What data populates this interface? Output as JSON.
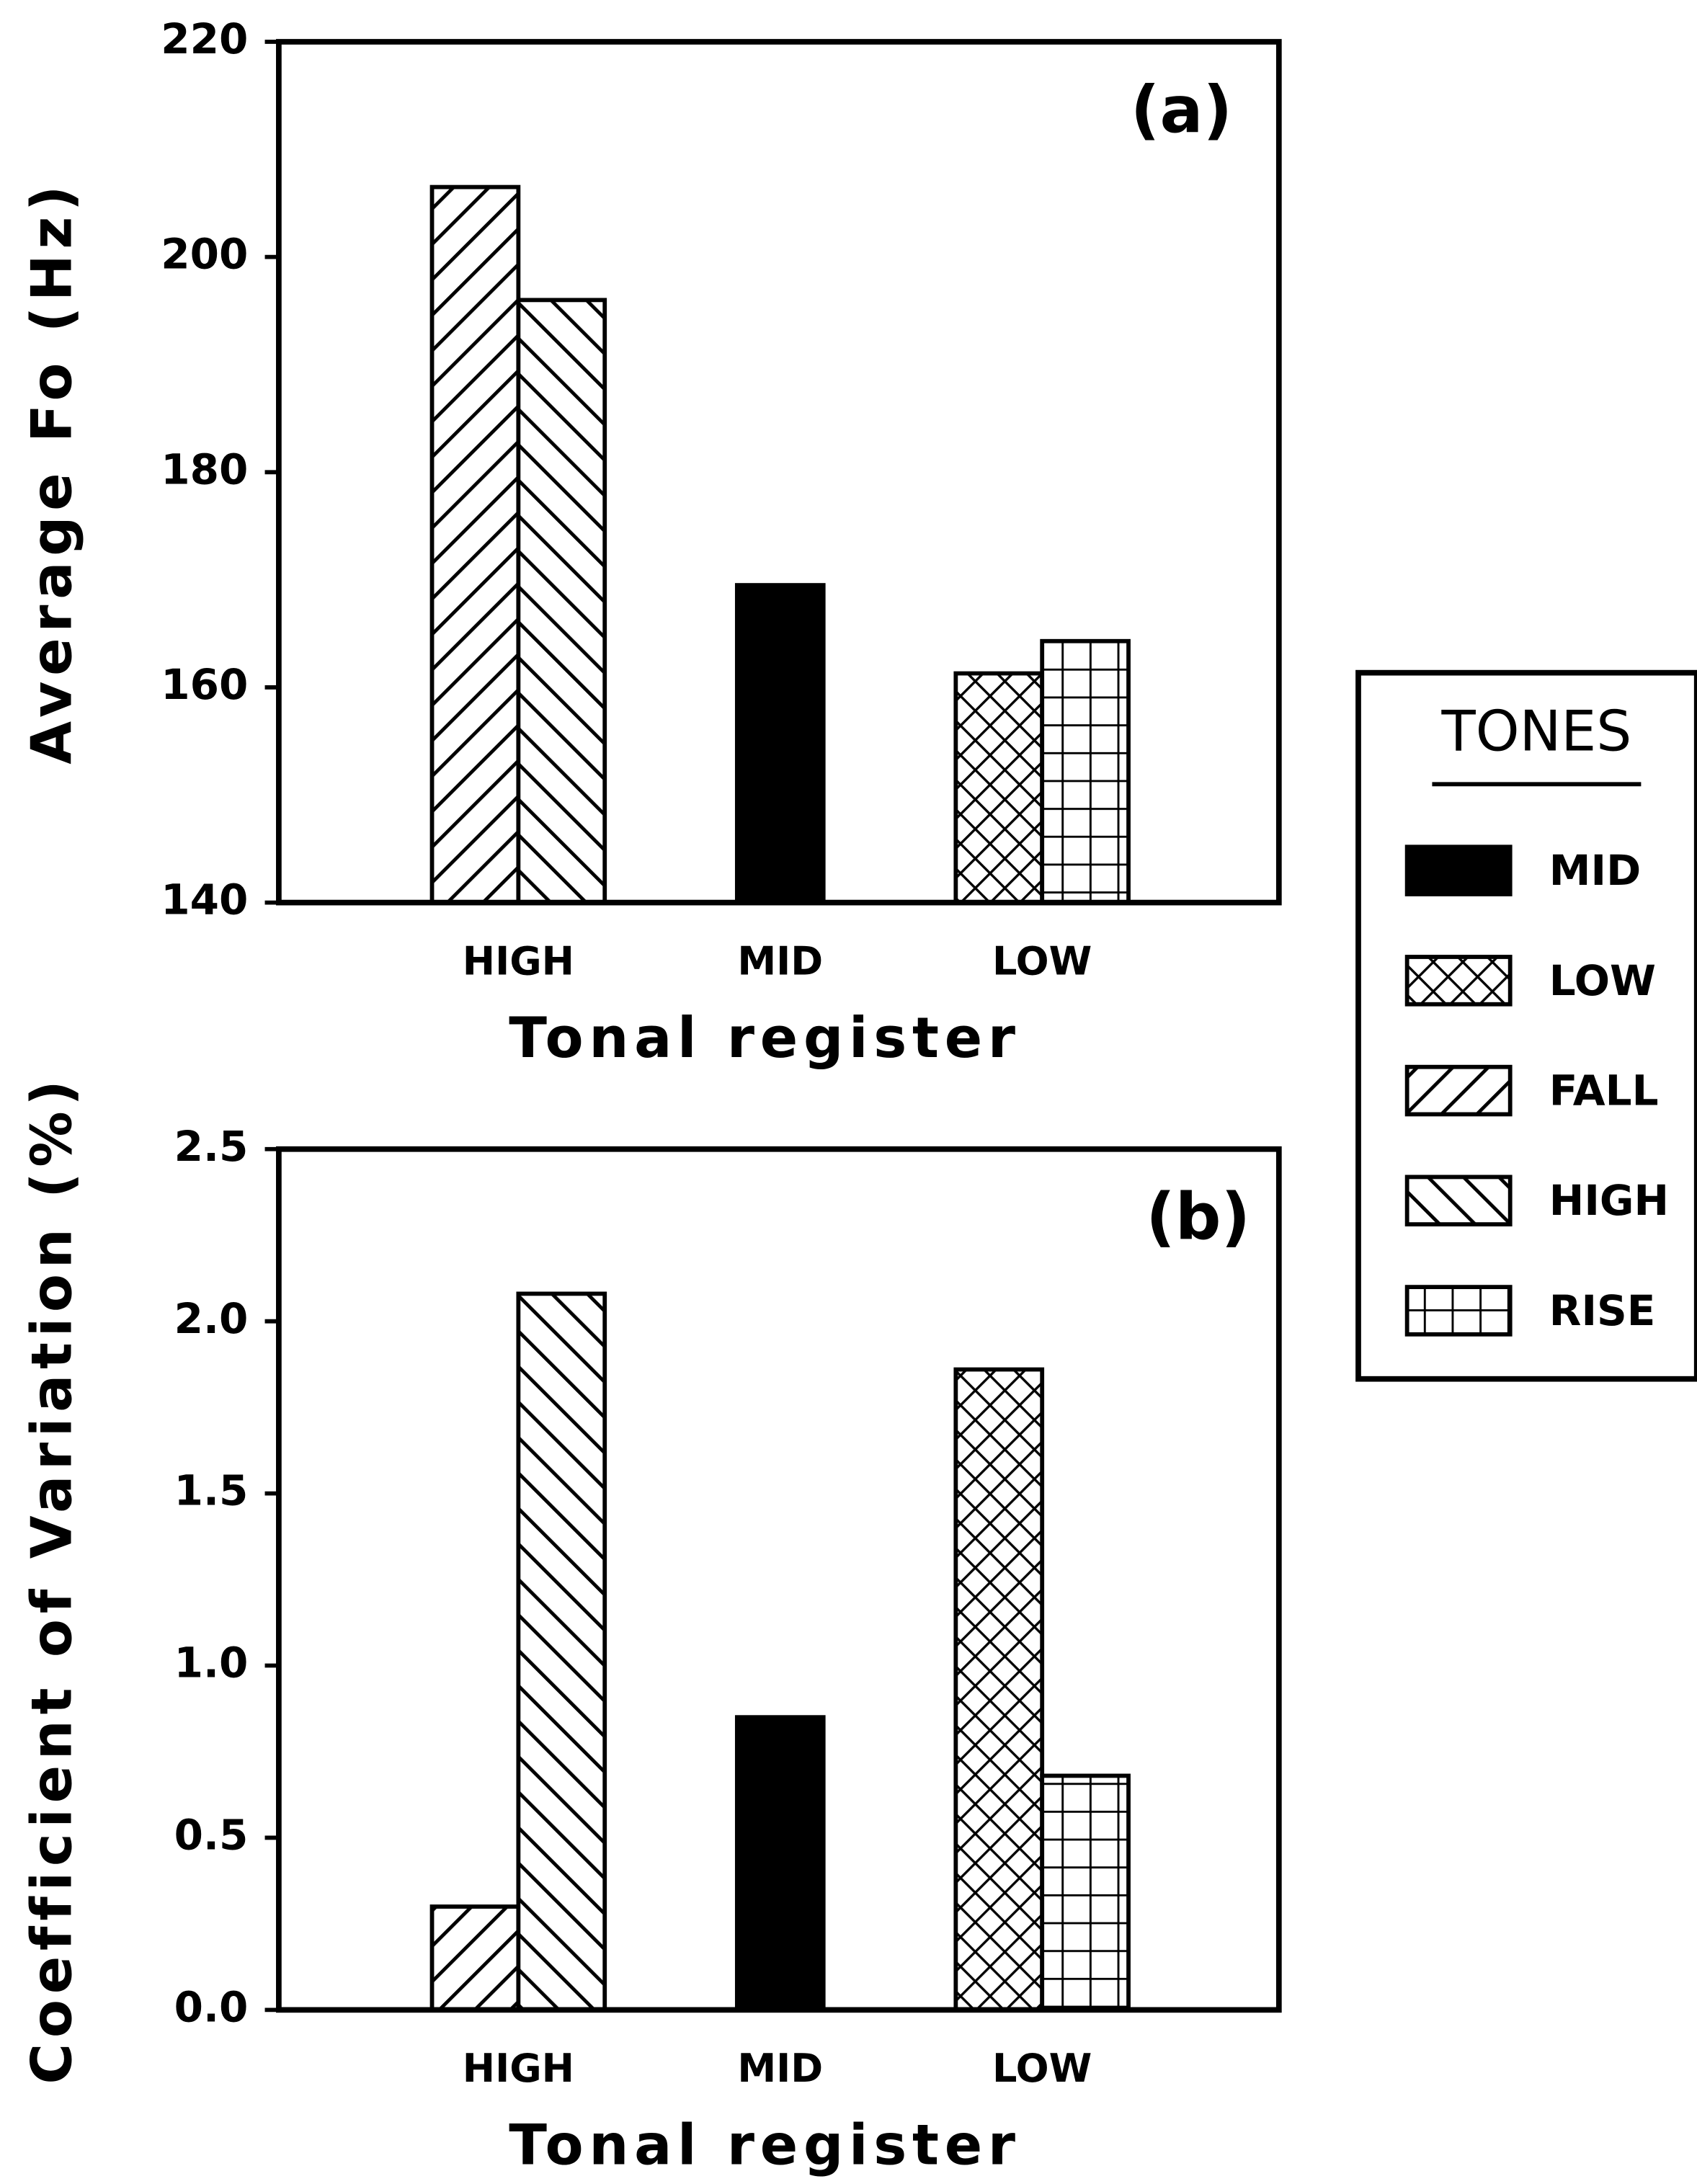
{
  "chart_data": [
    {
      "type": "bar",
      "annotation": "(a)",
      "y_label": "Average Fo (Hz)",
      "x_label": "Tonal register",
      "legend_title": "TONES",
      "categories": [
        "HIGH",
        "MID",
        "LOW"
      ],
      "ylim": [
        140,
        220
      ],
      "yticks": [
        140,
        160,
        180,
        200,
        220
      ],
      "series": [
        {
          "name": "MID",
          "color": "#000000",
          "pattern": "solid",
          "values": [
            null,
            169.5,
            null
          ]
        },
        {
          "name": "LOW",
          "color": "#000000",
          "pattern": "crosshatch",
          "values": [
            null,
            null,
            161.3
          ]
        },
        {
          "name": "FALL",
          "color": "#000000",
          "pattern": "forward-diagonal",
          "values": [
            206.5,
            null,
            null
          ]
        },
        {
          "name": "HIGH",
          "color": "#000000",
          "pattern": "back-diagonal",
          "values": [
            196,
            null,
            null
          ]
        },
        {
          "name": "RISE",
          "color": "#000000",
          "pattern": "grid",
          "values": [
            null,
            null,
            164.3
          ]
        }
      ]
    },
    {
      "type": "bar",
      "annotation": "(b)",
      "y_label": "Coefficient of Variation (%)",
      "x_label": "Tonal register",
      "categories": [
        "HIGH",
        "MID",
        "LOW"
      ],
      "ylim": [
        0,
        2.5
      ],
      "yticks": [
        {
          "value": 0,
          "label": "0.0"
        },
        0.5,
        {
          "value": 1,
          "label": "1.0"
        },
        1.5,
        {
          "value": 2,
          "label": "2.0"
        },
        2.5
      ],
      "series": [
        {
          "color": "#000000",
          "pattern": "solid",
          "values": [
            null,
            0.85,
            null
          ]
        },
        {
          "color": "#000000",
          "pattern": "crosshatch",
          "values": [
            null,
            null,
            1.86
          ]
        },
        {
          "color": "#000000",
          "pattern": "forward-diagonal",
          "values": [
            0.3,
            null,
            null
          ]
        },
        {
          "color": "#000000",
          "pattern": "back-diagonal",
          "values": [
            2.08,
            null,
            null
          ]
        },
        {
          "color": "#000000",
          "pattern": "grid",
          "values": [
            null,
            null,
            0.68
          ]
        }
      ]
    }
  ]
}
